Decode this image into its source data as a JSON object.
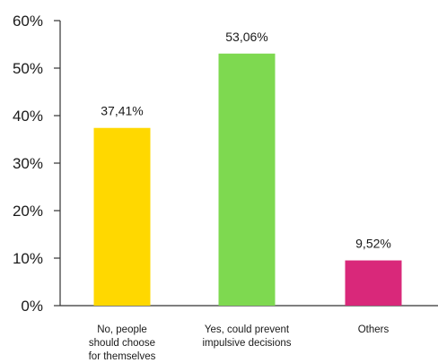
{
  "chart_data": {
    "type": "bar",
    "title": "",
    "xlabel": "",
    "ylabel": "",
    "ylim": [
      0,
      60
    ],
    "yticks": [
      0,
      10,
      20,
      30,
      40,
      50,
      60
    ],
    "ytick_labels": [
      "0%",
      "10%",
      "20%",
      "30%",
      "40%",
      "50%",
      "60%"
    ],
    "grid": false,
    "categories": [
      [
        "No, people",
        "should choose",
        "for themselves"
      ],
      [
        "Yes, could prevent",
        "impulsive decisions"
      ],
      [
        "Others"
      ]
    ],
    "values": [
      37.41,
      53.06,
      9.52
    ],
    "data_labels": [
      "37,41%",
      "53,06%",
      "9,52%"
    ],
    "colors": [
      "#ffd800",
      "#7ed950",
      "#d9287a"
    ]
  }
}
